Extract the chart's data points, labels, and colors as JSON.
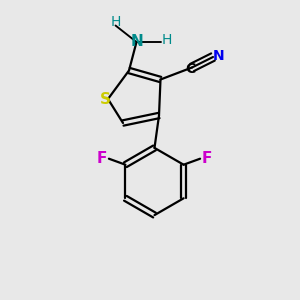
{
  "background_color": "#e8e8e8",
  "atom_colors": {
    "S": "#cccc00",
    "N_amino": "#008b8b",
    "H_amino": "#008b8b",
    "N_cyano": "#0000ee",
    "C_cyano": "#000000",
    "F": "#cc00cc",
    "C": "#000000"
  },
  "lw": 1.6,
  "xlim": [
    0,
    10
  ],
  "ylim": [
    0,
    10
  ]
}
